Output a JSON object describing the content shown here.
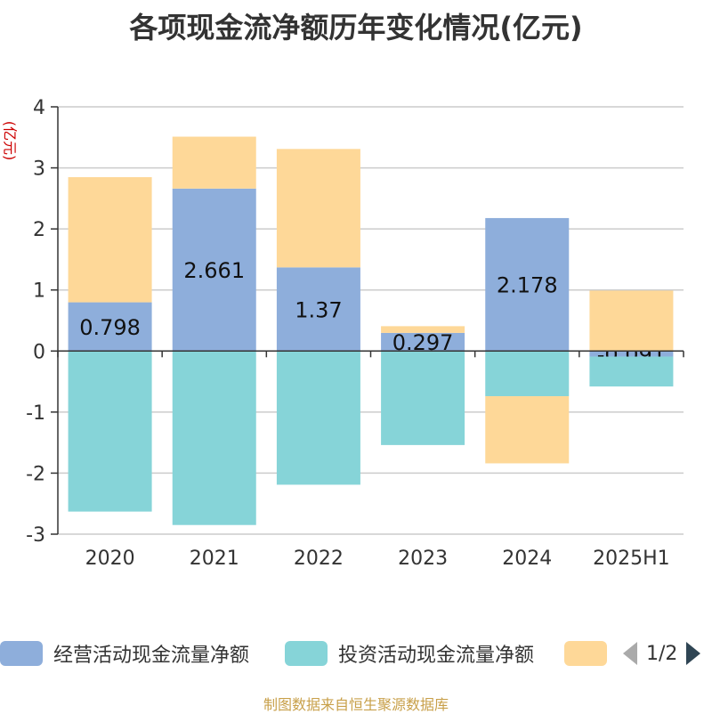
{
  "title": "各项现金流净额历年变化情况(亿元)",
  "unit_label": "(亿元)",
  "source": "制图数据来自恒生聚源数据库",
  "legend": {
    "items": [
      {
        "label": "经营活动现金流量净额",
        "color": "#8eaedb"
      },
      {
        "label": "投资活动现金流量净额",
        "color": "#86d4d8"
      },
      {
        "label": "",
        "color": "#fed898"
      }
    ],
    "page": "1/2"
  },
  "chart_data": {
    "type": "bar",
    "stacked": true,
    "categories": [
      "2020",
      "2021",
      "2022",
      "2023",
      "2024",
      "2025H1"
    ],
    "ylim": [
      -3,
      4
    ],
    "yticks": [
      4,
      3,
      2,
      1,
      0,
      -1,
      -2,
      -3
    ],
    "grid": true,
    "series": [
      {
        "name": "经营活动现金流量净额",
        "color": "#8eaedb",
        "values": [
          0.798,
          2.661,
          1.37,
          0.297,
          2.178,
          -0.091
        ],
        "labels": [
          "0.798",
          "2.661",
          "1.37",
          "0.297",
          "2.178",
          "-0.091"
        ]
      },
      {
        "name": "投资活动现金流量净额",
        "color": "#86d4d8",
        "values": [
          -2.63,
          -2.85,
          -2.19,
          -1.54,
          -0.74,
          -0.49
        ]
      },
      {
        "name": "",
        "color": "#fed898",
        "values": [
          2.05,
          0.85,
          1.94,
          0.11,
          -1.1,
          0.99
        ]
      }
    ]
  }
}
